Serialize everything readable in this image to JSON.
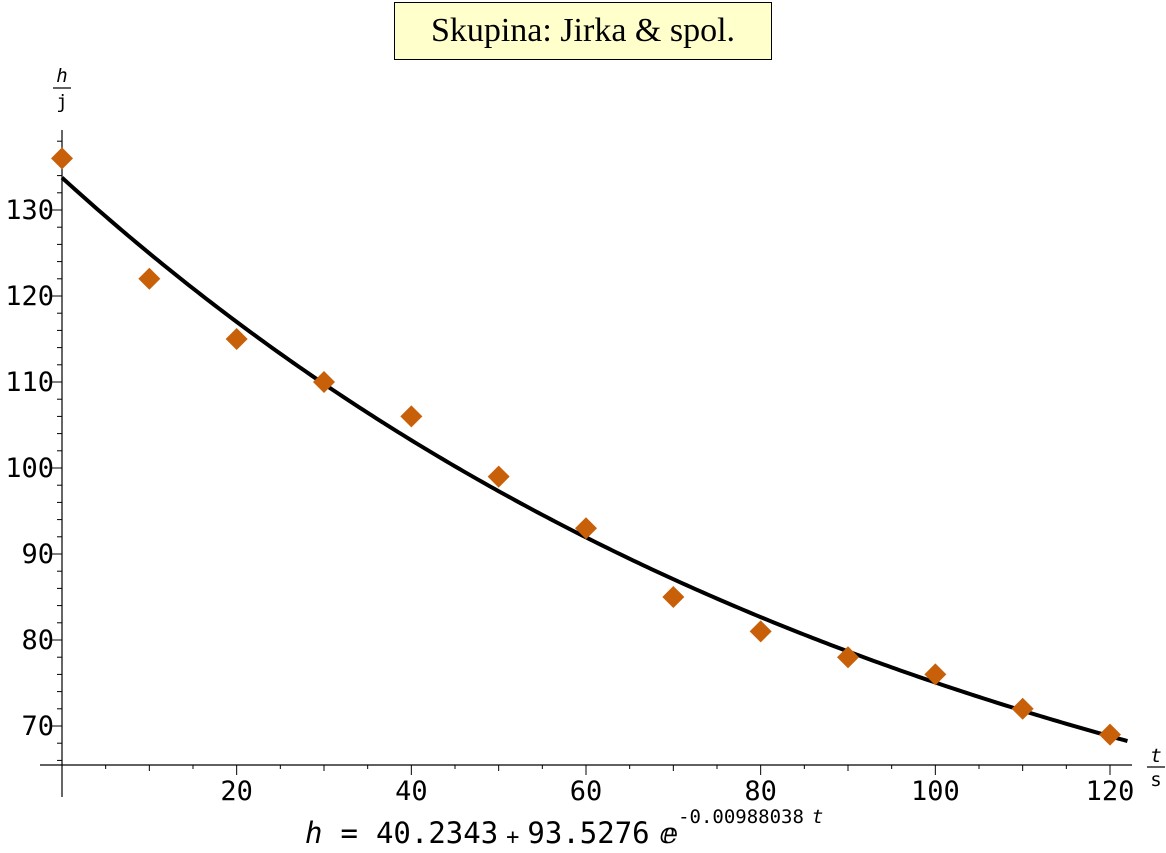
{
  "chart_data": {
    "type": "scatter",
    "title": "Skupina: Jirka & spol.",
    "xlabel": {
      "numerator": "t",
      "denominator": "s"
    },
    "ylabel": {
      "numerator": "h",
      "denominator": "j"
    },
    "xlim": [
      -2,
      122
    ],
    "ylim": [
      65,
      139
    ],
    "x_ticks": [
      20,
      40,
      60,
      80,
      100,
      120
    ],
    "y_ticks": [
      70,
      80,
      90,
      100,
      110,
      120,
      130
    ],
    "grid": false,
    "legend": "none",
    "series": [
      {
        "marker": "diamond",
        "color": "#c8600a",
        "x": [
          0,
          10,
          20,
          30,
          40,
          50,
          60,
          70,
          80,
          90,
          100,
          110,
          120
        ],
        "y": [
          136,
          122,
          115,
          110,
          106,
          99,
          93,
          85,
          81,
          78,
          76,
          72,
          69
        ]
      }
    ],
    "fit": {
      "color": "#000000",
      "a": 40.2343,
      "b": 93.5276,
      "k": -0.00988038,
      "x_range": [
        0,
        122
      ]
    },
    "formula": {
      "lhs": "h",
      "equals": "=",
      "constant": "40.2343",
      "plus": "+",
      "coefficient": "93.5276",
      "base": "ⅇ",
      "exponent": "-0.00988038",
      "variable": "t"
    }
  }
}
